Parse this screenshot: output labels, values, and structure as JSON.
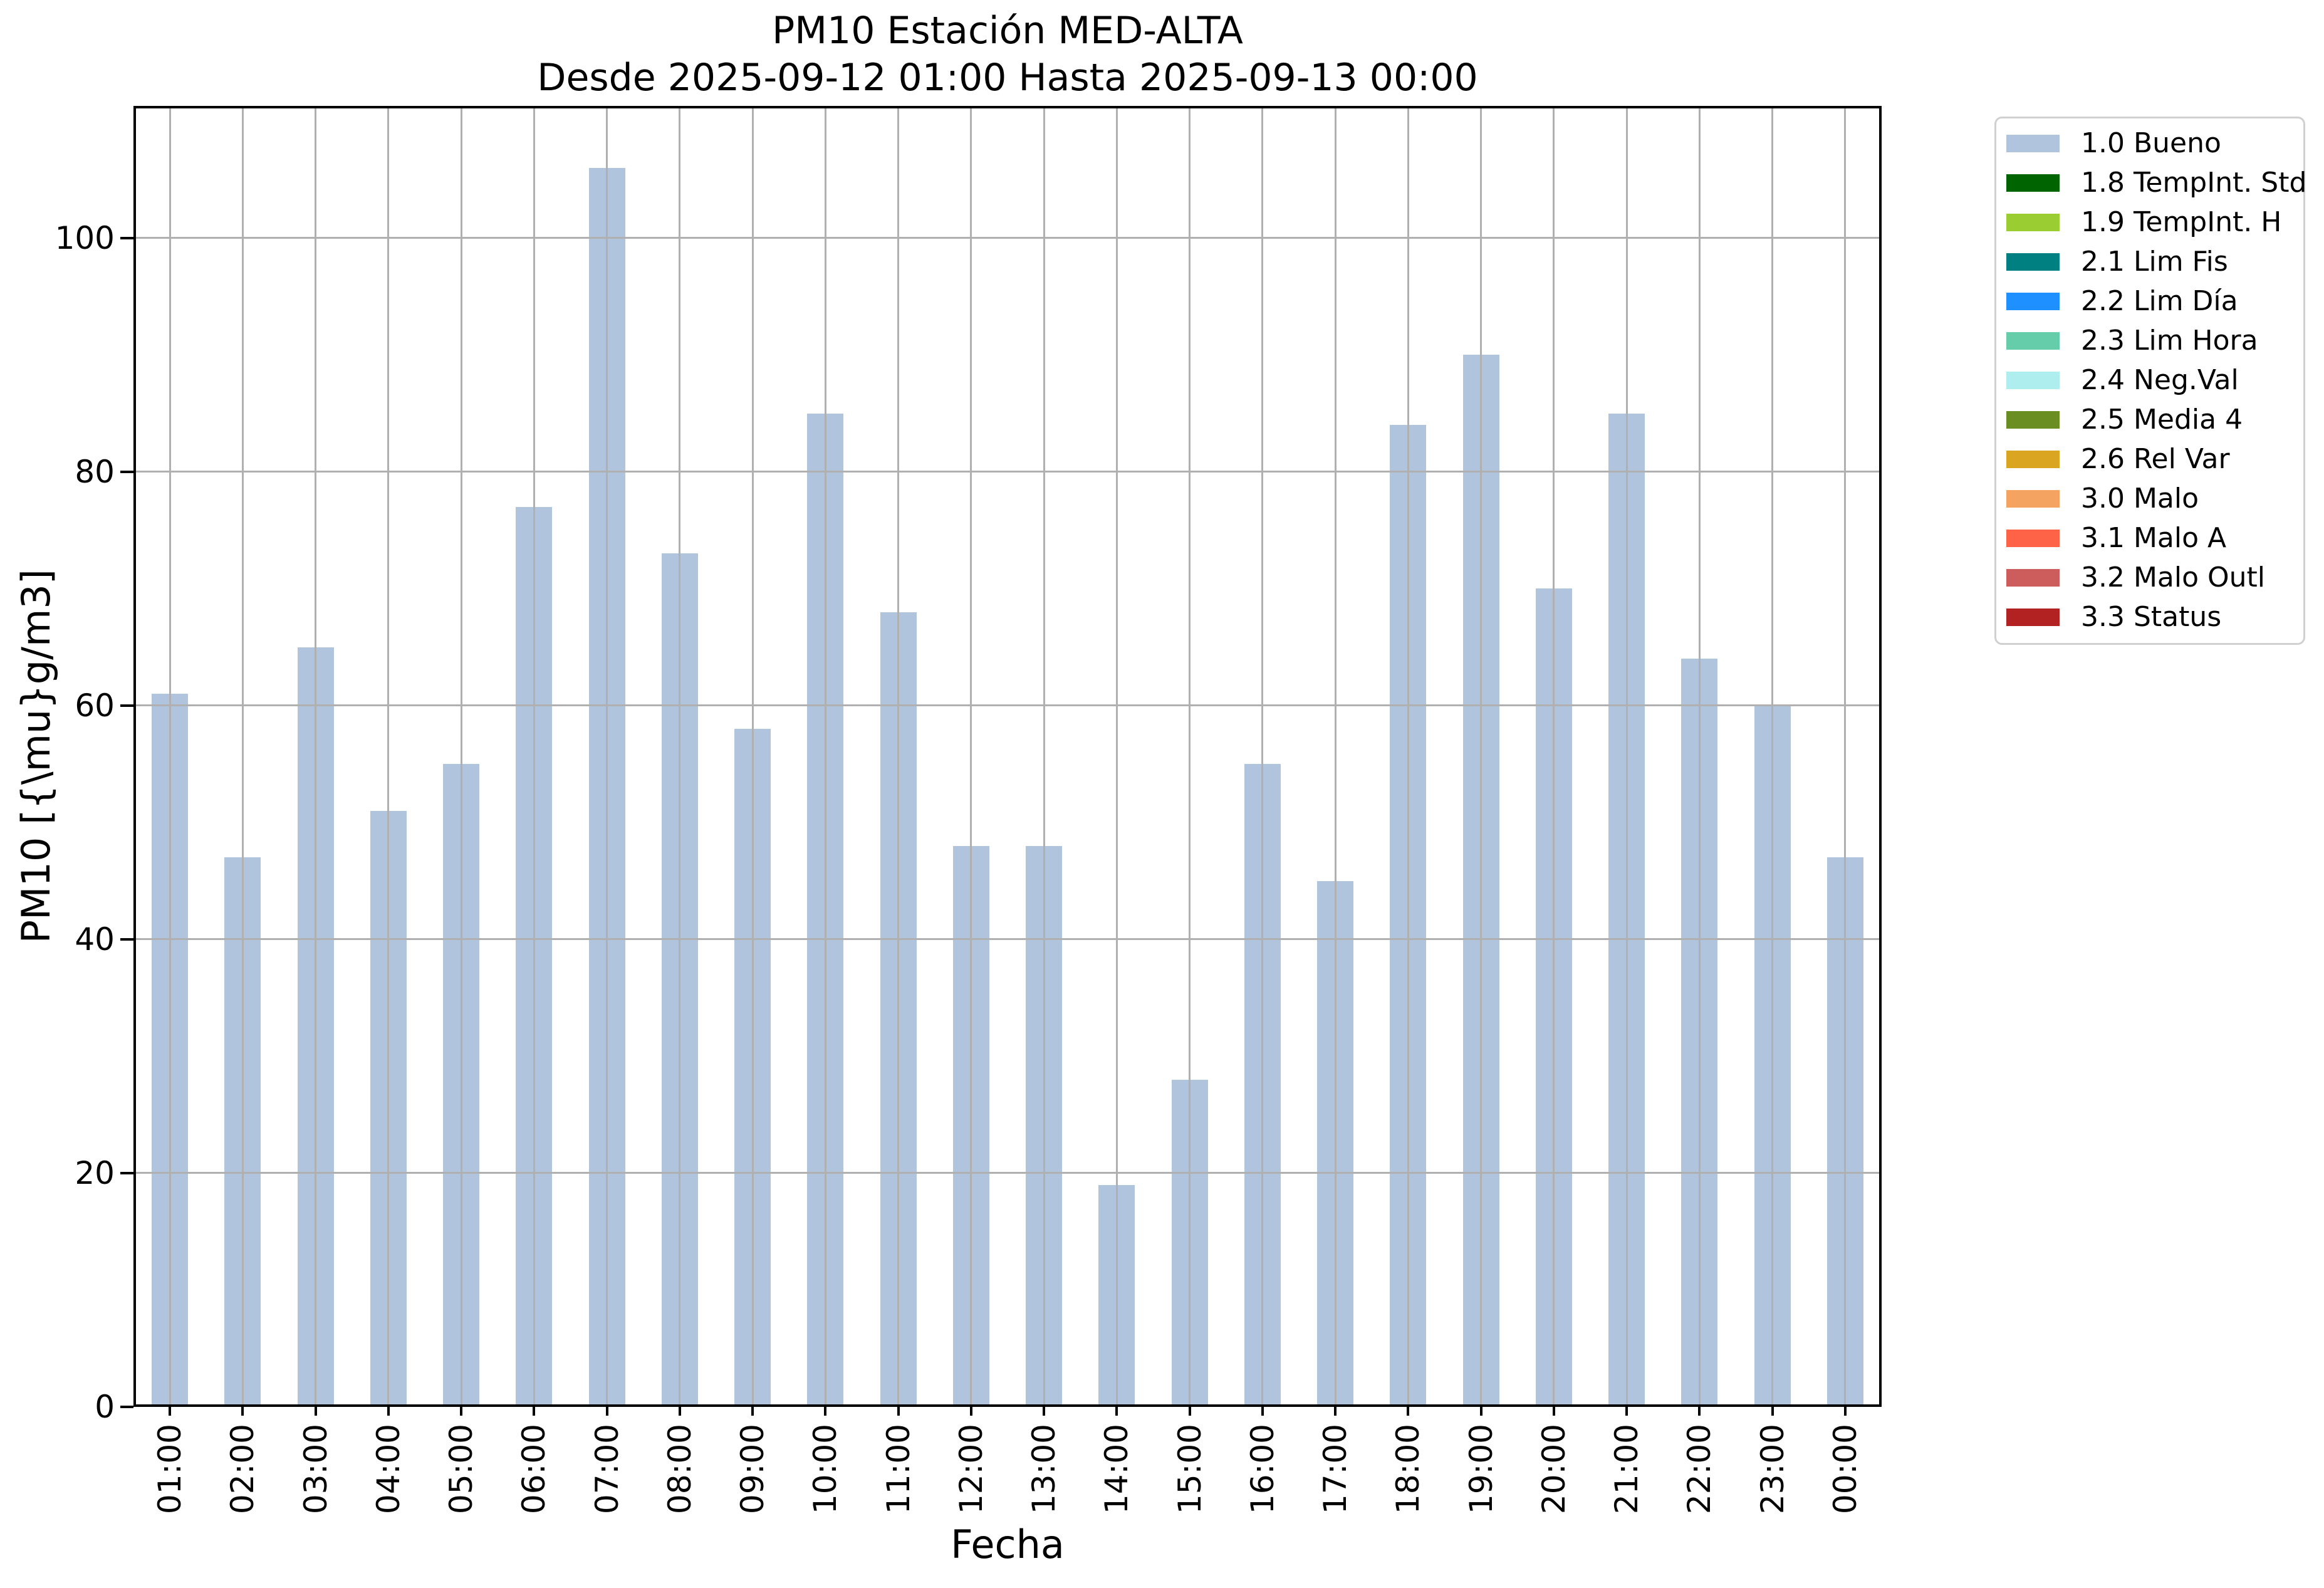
{
  "chart_data": {
    "type": "bar",
    "title": "PM10 Estación MED-ALTA",
    "subtitle": "Desde 2025-09-12 01:00 Hasta 2025-09-13 00:00",
    "xlabel": "Fecha",
    "ylabel": "PM10 [{\\mu}g/m3]",
    "categories": [
      "01:00",
      "02:00",
      "03:00",
      "04:00",
      "05:00",
      "06:00",
      "07:00",
      "08:00",
      "09:00",
      "10:00",
      "11:00",
      "12:00",
      "13:00",
      "14:00",
      "15:00",
      "16:00",
      "17:00",
      "18:00",
      "19:00",
      "20:00",
      "21:00",
      "22:00",
      "23:00",
      "00:00"
    ],
    "values": [
      61,
      47,
      65,
      51,
      55,
      77,
      106,
      73,
      58,
      85,
      68,
      48,
      48,
      19,
      28,
      55,
      45,
      84,
      90,
      70,
      85,
      64,
      60,
      47
    ],
    "series_name": "1.0 Bueno",
    "yticks": [
      0,
      20,
      40,
      60,
      80,
      100
    ],
    "ylim": [
      0,
      111.3
    ],
    "grid": true,
    "grid_over_bars": true,
    "legend_position": "outside-upper-right",
    "bar_color": "#b0c4de",
    "grid_color": "#b0b0b0",
    "axis_color": "#000000",
    "legend_border_color": "#d0d0d0",
    "legend": [
      {
        "label": "1.0 Bueno",
        "color": "#b0c4de"
      },
      {
        "label": "1.8 TempInt. Std",
        "color": "#006400"
      },
      {
        "label": "1.9 TempInt. H",
        "color": "#9acd32"
      },
      {
        "label": "2.1 Lim Fis",
        "color": "#008080"
      },
      {
        "label": "2.2 Lim Día",
        "color": "#1e90ff"
      },
      {
        "label": "2.3 Lim Hora",
        "color": "#66cdaa"
      },
      {
        "label": "2.4 Neg.Val",
        "color": "#afeeee"
      },
      {
        "label": "2.5 Media 4",
        "color": "#6b8e23"
      },
      {
        "label": "2.6 Rel Var",
        "color": "#daa520"
      },
      {
        "label": "3.0 Malo",
        "color": "#f4a460"
      },
      {
        "label": "3.1 Malo A",
        "color": "#ff6347"
      },
      {
        "label": "3.2 Malo Outl",
        "color": "#cd5c5c"
      },
      {
        "label": "3.3 Status",
        "color": "#b22222"
      }
    ]
  }
}
